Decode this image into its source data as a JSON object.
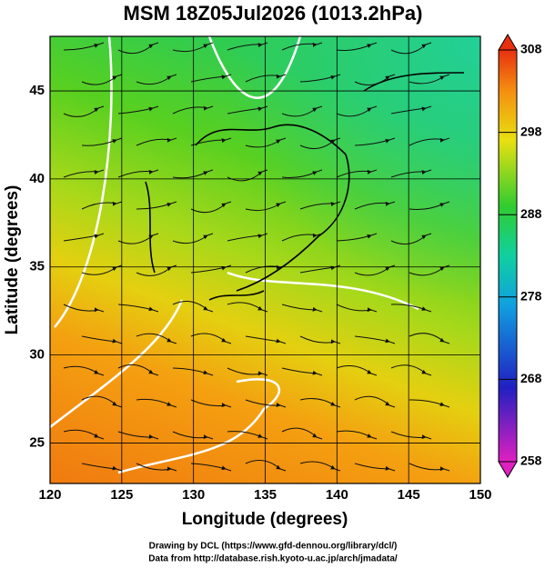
{
  "title": "MSM 18Z05Jul2026 (1013.2hPa)",
  "map": {
    "xlabel": "Longitude (degrees)",
    "ylabel": "Latitude  (degrees)",
    "xlim": [
      120,
      150
    ],
    "ylim": [
      22.7,
      48.1
    ],
    "xticks": [
      120,
      125,
      130,
      135,
      140,
      145,
      150
    ],
    "yticks": [
      25,
      30,
      35,
      40,
      45
    ]
  },
  "colorbar": {
    "lim": [
      258,
      308
    ],
    "ticks": [
      258,
      268,
      278,
      288,
      298,
      308
    ]
  },
  "credits": [
    "Drawing by DCL (https://www.gfd-dennou.org/library/dcl/)",
    "Data from http://database.rish.kyoto-u.ac.jp/arch/jmadata/"
  ]
}
